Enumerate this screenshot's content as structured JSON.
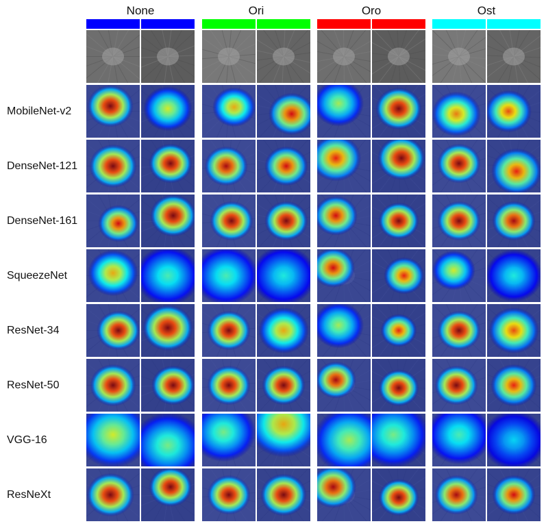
{
  "figure": {
    "columns": [
      {
        "title": "None",
        "color": "#0000ff"
      },
      {
        "title": "Ori",
        "color": "#00ff00"
      },
      {
        "title": "Oro",
        "color": "#ff0000"
      },
      {
        "title": "Ost",
        "color": "#00ffff"
      }
    ],
    "rows": [
      "MobileNet-v2",
      "DenseNet-121",
      "DenseNet-161",
      "SqueezeNet",
      "ResNet-34",
      "ResNet-50",
      "VGG-16",
      "ResNeXt"
    ]
  }
}
